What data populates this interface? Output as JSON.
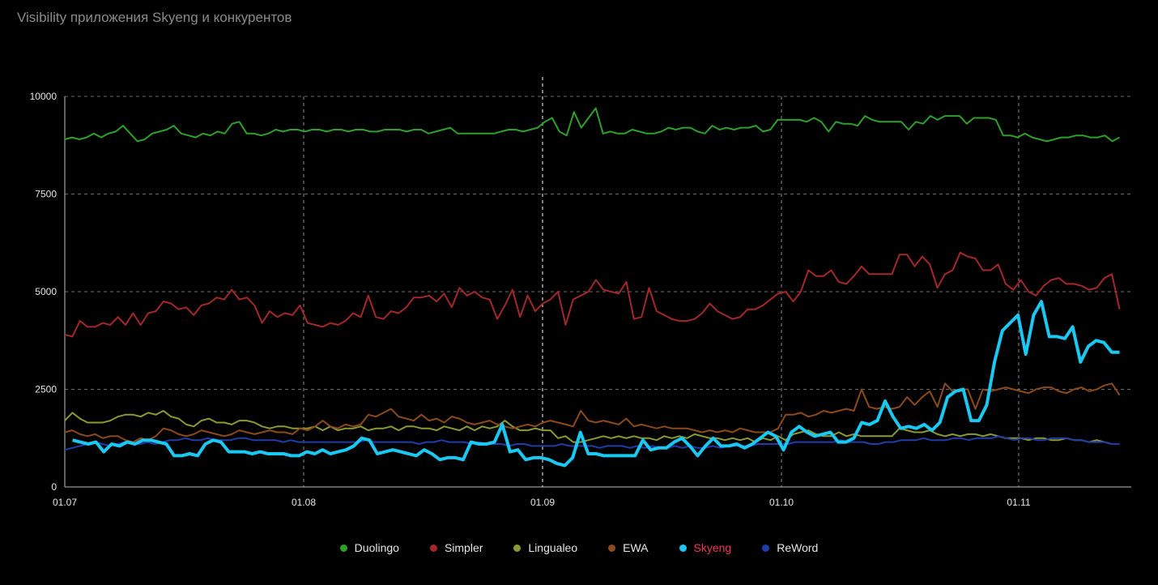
{
  "title": "Visibility приложения Skyeng и конкурентов",
  "chart_data": {
    "type": "line",
    "title": "Visibility приложения Skyeng и конкурентов",
    "xlabel": "",
    "ylabel": "",
    "ylim": [
      0,
      10000
    ],
    "y_ticks": [
      "0",
      "2500",
      "5000",
      "7500",
      "10000"
    ],
    "x_ticks": [
      "01.07",
      "01.08",
      "01.09",
      "01.10",
      "01.11"
    ],
    "grid": true,
    "legend_position": "bottom",
    "highlight_series": "Skyeng",
    "x_range": [
      "01.07",
      "14.11"
    ],
    "series": [
      {
        "name": "Duolingo",
        "color": "#2ea02a",
        "label_color": "#e6e6e6",
        "x_start": "01.07",
        "x_end": "14.11",
        "values": [
          8900,
          8950,
          8900,
          8950,
          9050,
          8950,
          9050,
          9100,
          9250,
          9050,
          8850,
          8900,
          9050,
          9100,
          9150,
          9250,
          9050,
          9000,
          8950,
          9050,
          9000,
          9100,
          9050,
          9300,
          9350,
          9050,
          9050,
          9000,
          9050,
          9150,
          9100,
          9150,
          9150,
          9100,
          9150,
          9150,
          9100,
          9150,
          9150,
          9100,
          9150,
          9150,
          9100,
          9100,
          9150,
          9150,
          9150,
          9100,
          9150,
          9150,
          9050,
          9100,
          9150,
          9200,
          9050,
          9050,
          9050,
          9050,
          9050,
          9050,
          9100,
          9150,
          9150,
          9100,
          9150,
          9200,
          9350,
          9450,
          9100,
          9000,
          9600,
          9200,
          9450,
          9700,
          9050,
          9100,
          9050,
          9050,
          9150,
          9100,
          9050,
          9050,
          9100,
          9200,
          9150,
          9200,
          9200,
          9100,
          9050,
          9250,
          9150,
          9200,
          9150,
          9200,
          9200,
          9250,
          9100,
          9150,
          9400,
          9400,
          9400,
          9400,
          9350,
          9450,
          9350,
          9100,
          9350,
          9300,
          9300,
          9250,
          9500,
          9400,
          9350,
          9350,
          9350,
          9350,
          9150,
          9350,
          9300,
          9500,
          9400,
          9500,
          9500,
          9500,
          9300,
          9450,
          9450,
          9450,
          9400,
          9000,
          9000,
          8950,
          9050,
          8950,
          8900,
          8850,
          8900,
          8950,
          8950,
          9000,
          9000,
          8950,
          8950,
          9000,
          8850,
          8950
        ]
      },
      {
        "name": "Simpler",
        "color": "#a3282a",
        "label_color": "#e6e6e6",
        "x_start": "01.07",
        "x_end": "14.11",
        "values": [
          3900,
          3850,
          4250,
          4100,
          4100,
          4200,
          4150,
          4350,
          4150,
          4450,
          4150,
          4450,
          4500,
          4750,
          4700,
          4550,
          4600,
          4400,
          4650,
          4700,
          4850,
          4800,
          5050,
          4800,
          4850,
          4650,
          4200,
          4500,
          4350,
          4450,
          4400,
          4650,
          4200,
          4150,
          4100,
          4200,
          4150,
          4250,
          4450,
          4350,
          4900,
          4350,
          4300,
          4500,
          4450,
          4600,
          4850,
          4850,
          4900,
          4750,
          4950,
          4600,
          5100,
          4900,
          5000,
          4850,
          4800,
          4300,
          4650,
          5050,
          4350,
          4900,
          4500,
          4700,
          4800,
          5000,
          4150,
          4800,
          4900,
          5000,
          5300,
          5050,
          5000,
          4950,
          5250,
          4300,
          4350,
          5100,
          4500,
          4400,
          4300,
          4250,
          4250,
          4300,
          4450,
          4700,
          4500,
          4400,
          4300,
          4350,
          4550,
          4550,
          4650,
          4800,
          4950,
          5000,
          4750,
          5000,
          5550,
          5400,
          5400,
          5550,
          5250,
          5200,
          5400,
          5650,
          5450,
          5450,
          5450,
          5450,
          5950,
          5950,
          5650,
          5900,
          5700,
          5100,
          5450,
          5550,
          6000,
          5900,
          5850,
          5550,
          5550,
          5700,
          5200,
          5050,
          5300,
          5000,
          4900,
          5150,
          5300,
          5350,
          5200,
          5200,
          5150,
          5050,
          5100,
          5350,
          5450,
          4550
        ]
      },
      {
        "name": "Lingualeo",
        "color": "#8a9a32",
        "label_color": "#e6e6e6",
        "x_start": "01.07",
        "x_end": "14.11",
        "values": [
          1700,
          1900,
          1750,
          1650,
          1650,
          1650,
          1700,
          1800,
          1850,
          1850,
          1800,
          1900,
          1850,
          1950,
          1800,
          1750,
          1600,
          1550,
          1700,
          1750,
          1650,
          1650,
          1600,
          1700,
          1700,
          1650,
          1550,
          1500,
          1550,
          1550,
          1500,
          1500,
          1500,
          1550,
          1450,
          1550,
          1450,
          1500,
          1500,
          1550,
          1450,
          1500,
          1500,
          1550,
          1450,
          1550,
          1550,
          1500,
          1500,
          1450,
          1550,
          1500,
          1450,
          1550,
          1450,
          1550,
          1500,
          1550,
          1700,
          1550,
          1450,
          1450,
          1500,
          1450,
          1450,
          1250,
          1300,
          1150,
          1150,
          1200,
          1250,
          1300,
          1250,
          1300,
          1250,
          1300,
          1250,
          1250,
          1200,
          1300,
          1250,
          1300,
          1250,
          1350,
          1300,
          1250,
          1250,
          1200,
          1250,
          1200,
          1250,
          1150,
          1250,
          1200,
          1300,
          1200,
          1350,
          1400,
          1450,
          1350,
          1300,
          1300,
          1400,
          1300,
          1350,
          1300,
          1300,
          1300,
          1300,
          1300,
          1500,
          1450,
          1400,
          1400,
          1450,
          1350,
          1300,
          1350,
          1300,
          1350,
          1350,
          1300,
          1350,
          1300,
          1250,
          1250,
          1250,
          1200,
          1250,
          1250,
          1200,
          1200,
          1250,
          1200,
          1200,
          1150,
          1200,
          1150,
          1100,
          1100
        ]
      },
      {
        "name": "EWA",
        "color": "#8b4a1a",
        "label_color": "#e6e6e6",
        "x_start": "01.07",
        "x_end": "14.11",
        "values": [
          1400,
          1450,
          1350,
          1300,
          1350,
          1250,
          1300,
          1300,
          1200,
          1150,
          1250,
          1200,
          1300,
          1500,
          1450,
          1350,
          1300,
          1350,
          1450,
          1400,
          1350,
          1300,
          1350,
          1450,
          1400,
          1350,
          1400,
          1450,
          1400,
          1400,
          1350,
          1500,
          1450,
          1550,
          1700,
          1550,
          1500,
          1600,
          1550,
          1600,
          1850,
          1800,
          1900,
          2000,
          1800,
          1750,
          1700,
          1850,
          1700,
          1750,
          1650,
          1800,
          1750,
          1650,
          1600,
          1650,
          1700,
          1600,
          1550,
          1500,
          1550,
          1600,
          1550,
          1650,
          1700,
          1650,
          1600,
          1550,
          1950,
          1700,
          1650,
          1700,
          1650,
          1600,
          1750,
          1550,
          1600,
          1550,
          1500,
          1550,
          1500,
          1500,
          1500,
          1450,
          1400,
          1450,
          1400,
          1450,
          1400,
          1500,
          1450,
          1400,
          1400,
          1400,
          1500,
          1850,
          1850,
          1900,
          1800,
          1850,
          1950,
          1900,
          1950,
          2000,
          1950,
          2500,
          2050,
          2000,
          2050,
          2000,
          2050,
          2300,
          2100,
          2300,
          2450,
          2050,
          2650,
          2450,
          2500,
          2500,
          2000,
          2500,
          2450,
          2500,
          2550,
          2500,
          2450,
          2400,
          2500,
          2550,
          2550,
          2450,
          2400,
          2500,
          2550,
          2450,
          2500,
          2600,
          2650,
          2350
        ]
      },
      {
        "name": "Skyeng",
        "color": "#1ac8f2",
        "label_color": "#f0345a",
        "x_start": "02.07",
        "x_end": "14.11",
        "values": [
          1200,
          1150,
          1100,
          1150,
          900,
          1100,
          1050,
          1150,
          1100,
          1200,
          1200,
          1150,
          1100,
          800,
          800,
          850,
          800,
          1100,
          1200,
          1150,
          900,
          900,
          900,
          850,
          900,
          850,
          850,
          850,
          800,
          800,
          900,
          850,
          950,
          850,
          900,
          950,
          1050,
          1250,
          1200,
          850,
          900,
          950,
          900,
          850,
          800,
          950,
          850,
          700,
          750,
          750,
          700,
          1150,
          1100,
          1100,
          1150,
          1600,
          900,
          950,
          700,
          750,
          750,
          700,
          600,
          550,
          750,
          1400,
          850,
          850,
          800,
          800,
          800,
          800,
          800,
          1200,
          950,
          1000,
          1000,
          1150,
          1250,
          1050,
          800,
          1050,
          1250,
          1050,
          1050,
          1100,
          1000,
          1100,
          1250,
          1400,
          1300,
          950,
          1400,
          1550,
          1400,
          1300,
          1350,
          1400,
          1150,
          1150,
          1250,
          1650,
          1600,
          1700,
          2200,
          1800,
          1500,
          1550,
          1500,
          1600,
          1450,
          1650,
          2300,
          2450,
          2500,
          1700,
          1700,
          2100,
          3200,
          4000,
          4200,
          4400,
          3400,
          4400,
          4750,
          3850,
          3850,
          3800,
          4100,
          3200,
          3600,
          3750,
          3700,
          3450,
          3450
        ]
      },
      {
        "name": "ReWord",
        "color": "#1f3ca8",
        "label_color": "#e6e6e6",
        "x_start": "01.07",
        "x_end": "14.11",
        "values": [
          950,
          1000,
          1050,
          1100,
          1150,
          1100,
          1050,
          1100,
          1150,
          1100,
          1100,
          1150,
          1100,
          1150,
          1200,
          1200,
          1250,
          1200,
          1200,
          1250,
          1200,
          1200,
          1200,
          1250,
          1250,
          1200,
          1200,
          1200,
          1200,
          1150,
          1200,
          1150,
          1150,
          1150,
          1150,
          1150,
          1150,
          1150,
          1150,
          1150,
          1200,
          1150,
          1150,
          1150,
          1150,
          1150,
          1150,
          1100,
          1150,
          1150,
          1200,
          1150,
          1150,
          1150,
          1100,
          1150,
          1100,
          1100,
          1100,
          1050,
          1100,
          1100,
          1050,
          1050,
          1050,
          1050,
          1100,
          1050,
          1050,
          1050,
          1050,
          1000,
          1050,
          1050,
          1050,
          1000,
          1050,
          1000,
          1050,
          1000,
          1000,
          1050,
          1000,
          1050,
          1000,
          1000,
          1050,
          1000,
          1050,
          1050,
          1050,
          1050,
          1100,
          1100,
          1100,
          1100,
          1100,
          1150,
          1150,
          1150,
          1150,
          1150,
          1150,
          1200,
          1150,
          1150,
          1150,
          1100,
          1100,
          1150,
          1150,
          1200,
          1200,
          1200,
          1250,
          1200,
          1200,
          1200,
          1250,
          1250,
          1200,
          1250,
          1250,
          1250,
          1300,
          1250,
          1200,
          1250,
          1250,
          1200,
          1200,
          1250,
          1250,
          1250,
          1200,
          1200,
          1150,
          1150,
          1150,
          1100,
          1100
        ]
      }
    ]
  }
}
